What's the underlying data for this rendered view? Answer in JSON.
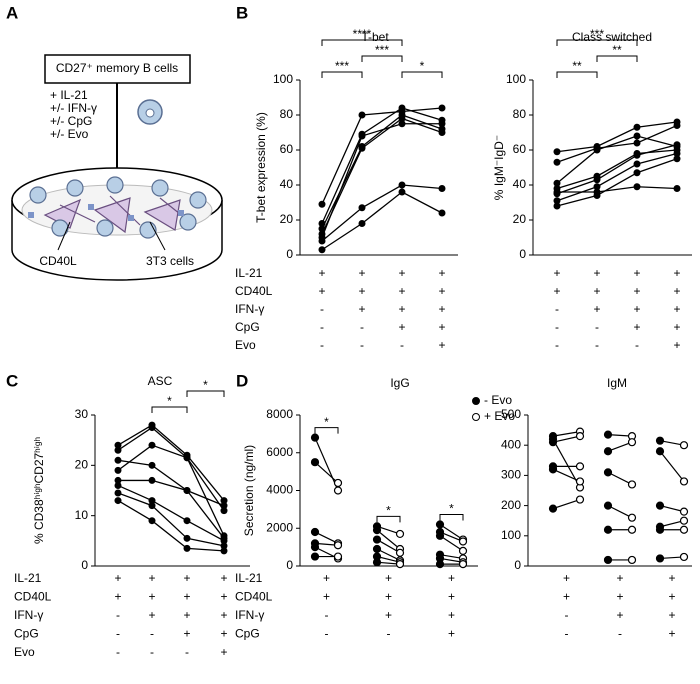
{
  "panel_labels": [
    "A",
    "B",
    "C",
    "D"
  ],
  "diagram": {
    "box": "CD27⁺ memory B cells",
    "treatments": [
      "+ IL-21",
      "+/- IFN-γ",
      "+/- CpG",
      "+/- Evo"
    ],
    "ligand": "CD40L",
    "feeder": "3T3 cells"
  },
  "chart_data": [
    {
      "type": "line",
      "title": "T-bet",
      "y_label": "T-bet expression (%)",
      "color": "#000000",
      "ylim": [
        0,
        100
      ],
      "yticks": [
        0,
        20,
        40,
        60,
        80,
        100
      ],
      "condition_labels": [
        "IL-21",
        "CD40L",
        "IFN-γ",
        "CpG",
        "Evo"
      ],
      "conditions": [
        [
          "+",
          "+",
          "+",
          "+"
        ],
        [
          "+",
          "+",
          "+",
          "+"
        ],
        [
          "-",
          "+",
          "+",
          "+"
        ],
        [
          "-",
          "-",
          "+",
          "+"
        ],
        [
          "-",
          "-",
          "-",
          "+"
        ]
      ],
      "series": [
        {
          "values": [
            29,
            80,
            82,
            84
          ]
        },
        {
          "values": [
            18,
            69,
            84,
            77
          ]
        },
        {
          "values": [
            15,
            62,
            80,
            72
          ]
        },
        {
          "values": [
            12,
            61,
            78,
            70
          ]
        },
        {
          "values": [
            10,
            68,
            75,
            75
          ]
        },
        {
          "values": [
            8,
            27,
            40,
            38
          ]
        },
        {
          "values": [
            3,
            18,
            36,
            24
          ]
        }
      ],
      "annotations": [
        {
          "from": 0,
          "to": 1,
          "label": "***"
        },
        {
          "from": 1,
          "to": 2,
          "label": "***"
        },
        {
          "from": 2,
          "to": 3,
          "label": "*"
        },
        {
          "from": 0,
          "to": 2,
          "label": "****"
        }
      ]
    },
    {
      "type": "line",
      "title": "Class switched",
      "y_label": "% IgM⁻IgD⁻",
      "color": "#000000",
      "ylim": [
        0,
        100
      ],
      "yticks": [
        0,
        20,
        40,
        60,
        80,
        100
      ],
      "conditions": [
        [
          "+",
          "+",
          "+",
          "+"
        ],
        [
          "+",
          "+",
          "+",
          "+"
        ],
        [
          "-",
          "+",
          "+",
          "+"
        ],
        [
          "-",
          "-",
          "+",
          "+"
        ],
        [
          "-",
          "-",
          "-",
          "+"
        ]
      ],
      "series": [
        {
          "values": [
            59,
            62,
            73,
            76
          ]
        },
        {
          "values": [
            53,
            61,
            64,
            74
          ]
        },
        {
          "values": [
            41,
            60,
            68,
            62
          ]
        },
        {
          "values": [
            38,
            45,
            58,
            60
          ]
        },
        {
          "values": [
            35,
            43,
            57,
            63
          ]
        },
        {
          "values": [
            31,
            39,
            52,
            58
          ]
        },
        {
          "values": [
            28,
            34,
            47,
            55
          ]
        },
        {
          "values": [
            36,
            36,
            39,
            38
          ]
        }
      ],
      "annotations": [
        {
          "from": 0,
          "to": 1,
          "label": "**"
        },
        {
          "from": 1,
          "to": 2,
          "label": "**"
        },
        {
          "from": 0,
          "to": 2,
          "label": "***"
        }
      ]
    },
    {
      "type": "line",
      "title": "ASC",
      "y_label": "% CD38ʰⁱᵍʰCD27ʰⁱᵍʰ",
      "color": "#000000",
      "ylim": [
        0,
        30
      ],
      "yticks": [
        0,
        10,
        20,
        30
      ],
      "condition_labels": [
        "IL-21",
        "CD40L",
        "IFN-γ",
        "CpG",
        "Evo"
      ],
      "conditions": [
        [
          "+",
          "+",
          "+",
          "+"
        ],
        [
          "+",
          "+",
          "+",
          "+"
        ],
        [
          "-",
          "+",
          "+",
          "+"
        ],
        [
          "-",
          "-",
          "+",
          "+"
        ],
        [
          "-",
          "-",
          "-",
          "+"
        ]
      ],
      "series": [
        {
          "values": [
            24,
            28,
            22,
            13
          ]
        },
        {
          "values": [
            23,
            27.5,
            21.5,
            11
          ]
        },
        {
          "values": [
            21,
            20,
            15,
            12
          ]
        },
        {
          "values": [
            19,
            24,
            21.5,
            6
          ]
        },
        {
          "values": [
            17,
            17,
            15,
            5.5
          ]
        },
        {
          "values": [
            16,
            13,
            9,
            5
          ]
        },
        {
          "values": [
            14.5,
            12,
            5.5,
            4
          ]
        },
        {
          "values": [
            13,
            9,
            3.5,
            3
          ]
        }
      ],
      "annotations": [
        {
          "from": 1,
          "to": 2,
          "label": "*"
        },
        {
          "from": 2,
          "to": 3,
          "label": "*"
        }
      ]
    },
    {
      "type": "paired",
      "title": "IgG",
      "y_label": "Secretion (ng/ml)",
      "color": "#000000",
      "legend": "upper right",
      "ylim": [
        0,
        8000
      ],
      "yticks": [
        0,
        2000,
        4000,
        6000,
        8000
      ],
      "condition_labels": [
        "IL-21",
        "CD40L",
        "IFN-γ",
        "CpG"
      ],
      "conditions": [
        [
          "+",
          "+",
          "+"
        ],
        [
          "+",
          "+",
          "+"
        ],
        [
          "-",
          "+",
          "+"
        ],
        [
          "-",
          "-",
          "+"
        ]
      ],
      "series": [
        {
          "name": "- Evo",
          "marker": "filled",
          "values": [
            [
              6800,
              5500,
              1800,
              1200,
              1000,
              500
            ],
            [
              2100,
              1900,
              1400,
              900,
              500,
              200
            ],
            [
              2200,
              1800,
              1600,
              600,
              400,
              100
            ]
          ]
        },
        {
          "name": "+ Evo",
          "marker": "open",
          "values": [
            [
              4000,
              4400,
              1200,
              1100,
              400,
              500
            ],
            [
              1700,
              900,
              700,
              300,
              200,
              100
            ],
            [
              1400,
              1300,
              800,
              400,
              200,
              100
            ]
          ]
        }
      ],
      "annotations": [
        {
          "group": 0,
          "label": "*"
        },
        {
          "group": 1,
          "label": "*"
        },
        {
          "group": 2,
          "label": "*"
        }
      ]
    },
    {
      "type": "paired",
      "title": "IgM",
      "color": "#000000",
      "ylim": [
        0,
        500
      ],
      "yticks": [
        0,
        100,
        200,
        300,
        400,
        500
      ],
      "conditions": [
        [
          "+",
          "+",
          "+"
        ],
        [
          "+",
          "+",
          "+"
        ],
        [
          "-",
          "+",
          "+"
        ],
        [
          "-",
          "-",
          "+"
        ]
      ],
      "series": [
        {
          "marker": "filled",
          "values": [
            [
              430,
              420,
              330,
              320,
              190,
              410
            ],
            [
              435,
              380,
              310,
              200,
              120,
              20
            ],
            [
              415,
              380,
              200,
              130,
              120,
              25
            ]
          ]
        },
        {
          "marker": "open",
          "values": [
            [
              445,
              260,
              330,
              280,
              220,
              430
            ],
            [
              430,
              410,
              270,
              160,
              120,
              20
            ],
            [
              400,
              280,
              180,
              150,
              120,
              30
            ]
          ]
        }
      ]
    }
  ]
}
